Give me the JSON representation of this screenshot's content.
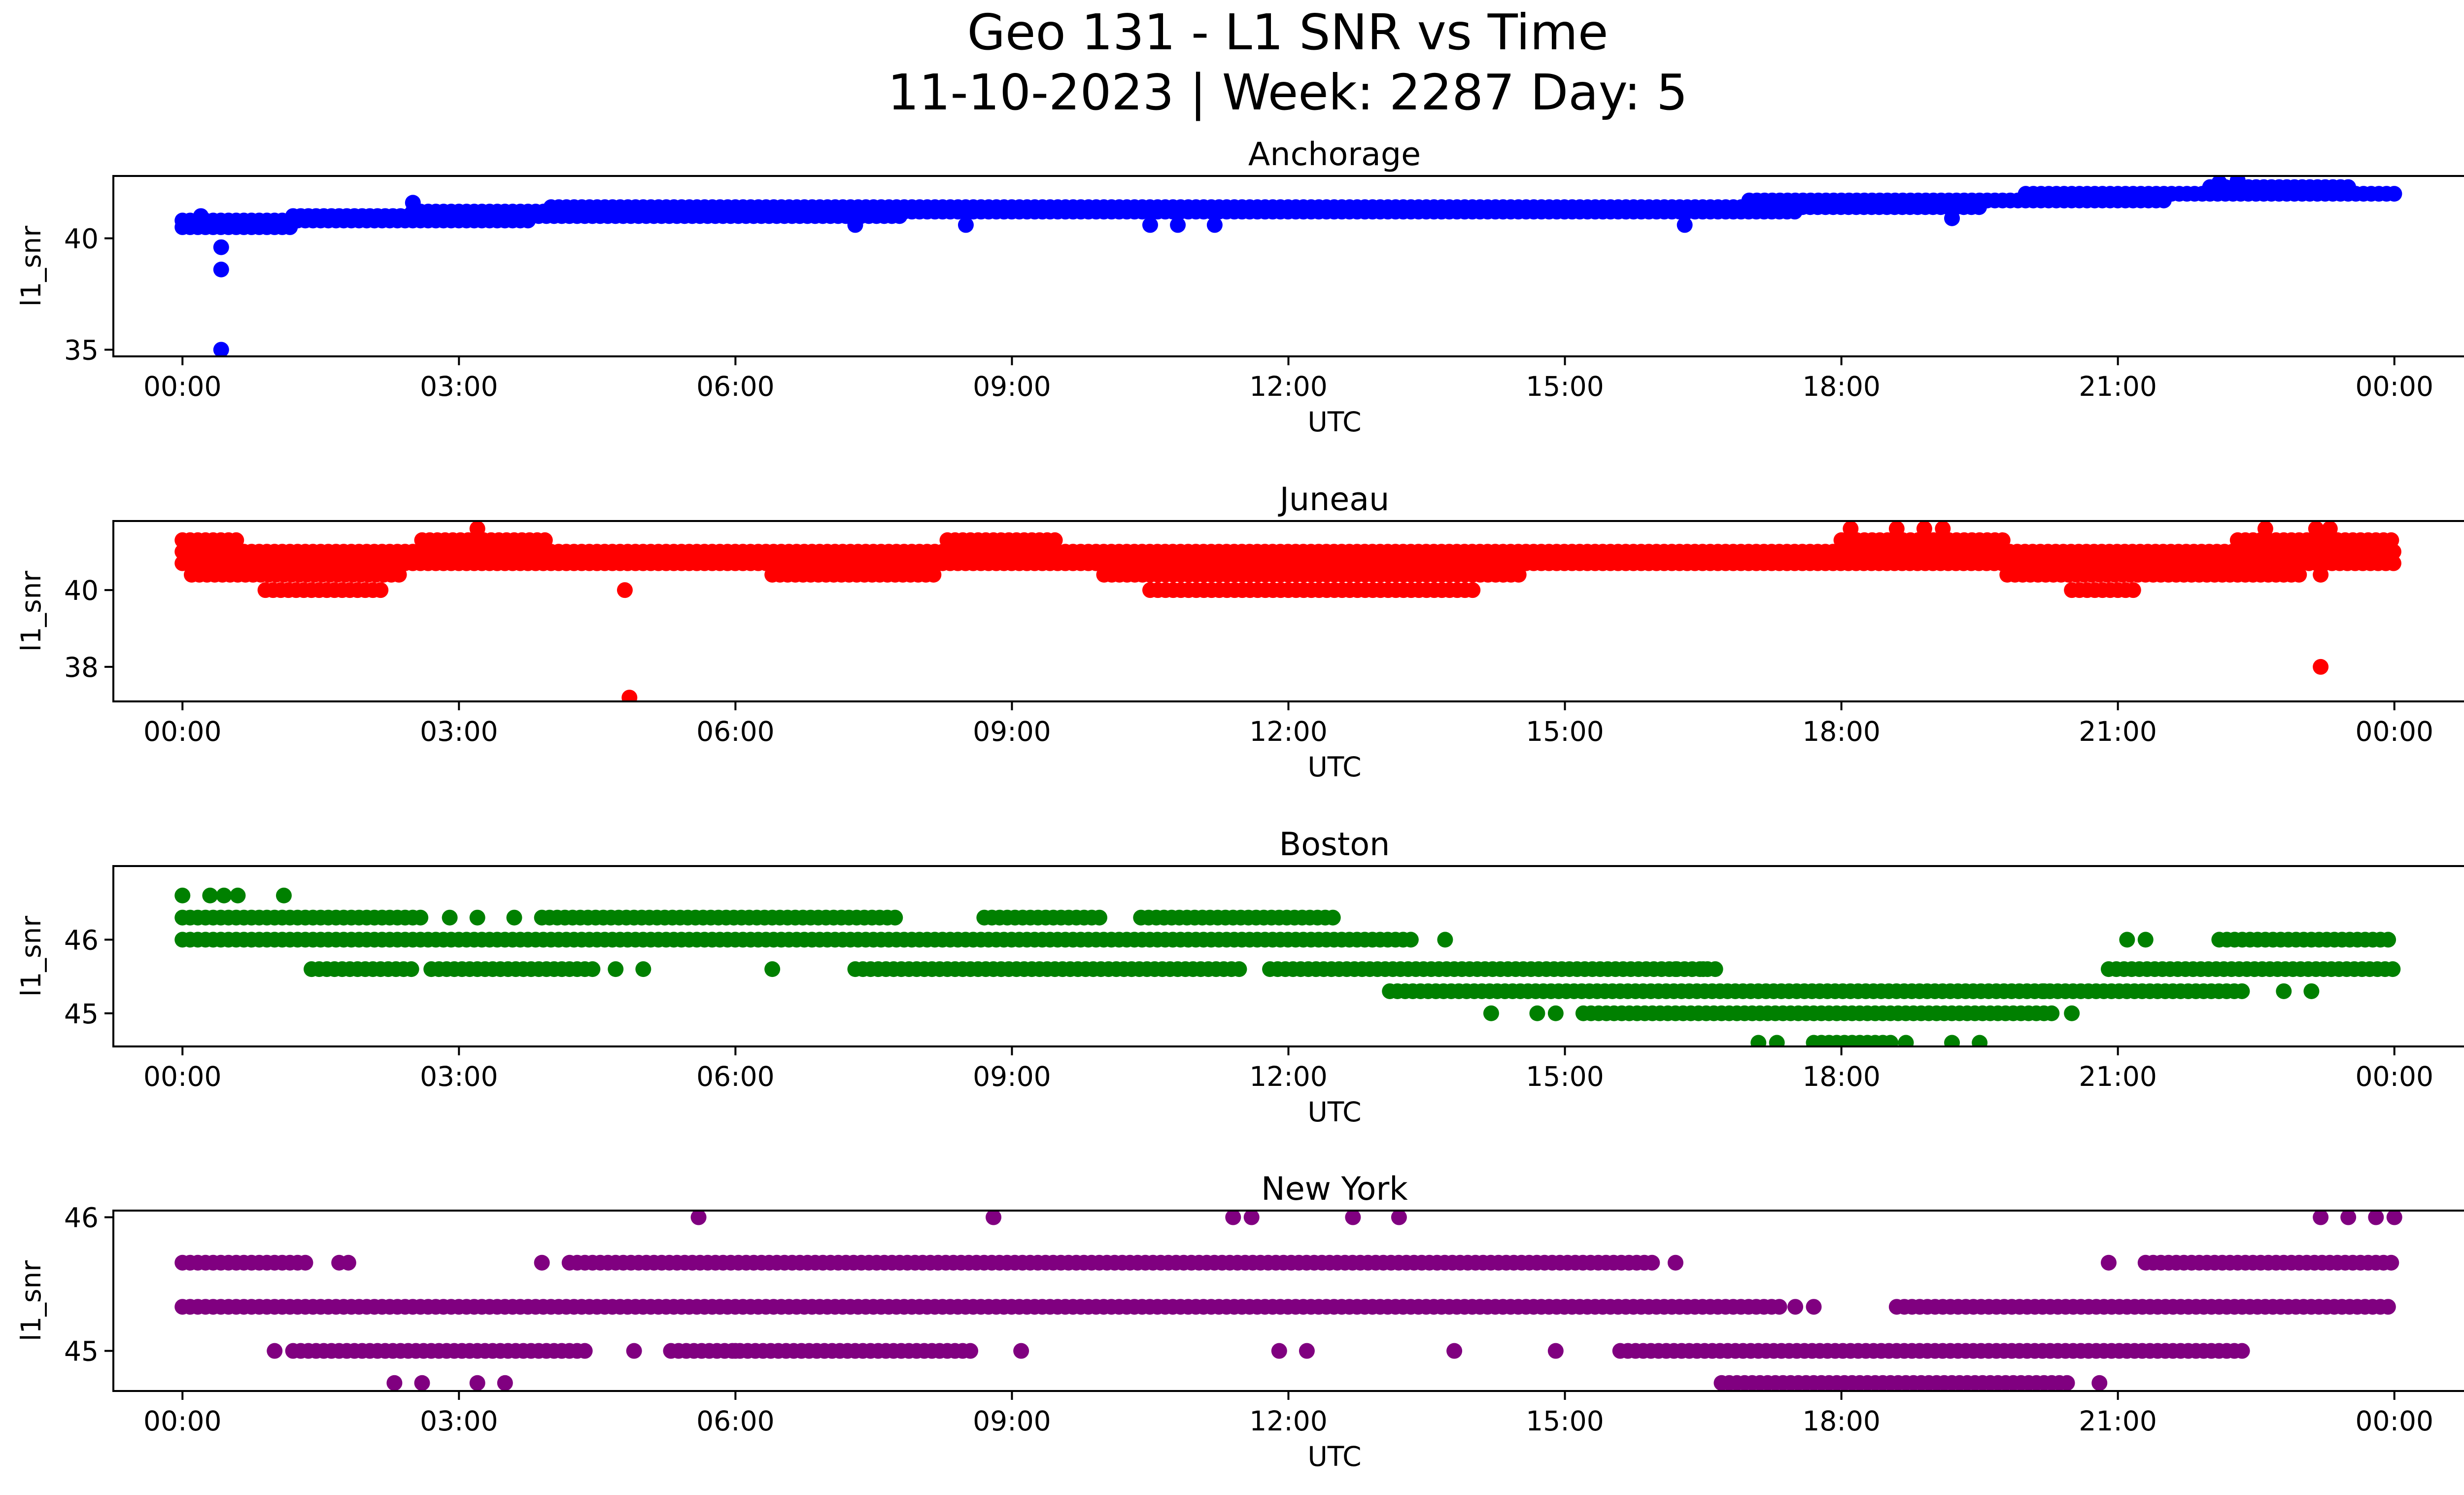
{
  "title_line1": "Geo 131 - L1 SNR vs Time",
  "title_line2": "11-10-2023 | Week: 2287 Day: 5",
  "chart_data": [
    {
      "type": "scatter",
      "title": "Anchorage",
      "xlabel": "UTC",
      "ylabel": "l1_snr",
      "color": "#0000ff",
      "xlim": [
        -0.75,
        25.75
      ],
      "ylim": [
        34.7,
        42.8
      ],
      "xtick_values": [
        0,
        3,
        6,
        9,
        12,
        15,
        18,
        21,
        24
      ],
      "xtick_labels": [
        "00:00",
        "03:00",
        "06:00",
        "09:00",
        "12:00",
        "15:00",
        "18:00",
        "21:00",
        "00:00"
      ],
      "ytick_values": [
        35,
        40
      ],
      "ytick_labels": [
        "35",
        "40"
      ],
      "series": [
        {
          "bands": [
            {
              "y": 40.5,
              "x": [
                [
                  0,
                  1.2
                ]
              ]
            },
            {
              "y": 40.8,
              "x": [
                [
                  0,
                  3.8
                ]
              ]
            },
            {
              "y": 41.0,
              "x": [
                [
                  1.2,
                  7.8
                ]
              ]
            },
            {
              "y": 41.2,
              "x": [
                [
                  2.5,
                  17.5
                ]
              ]
            },
            {
              "y": 41.4,
              "x": [
                [
                  4.0,
                  19.5
                ]
              ]
            },
            {
              "y": 41.7,
              "x": [
                [
                  17.0,
                  21.5
                ]
              ]
            },
            {
              "y": 42.0,
              "x": [
                [
                  20.0,
                  24
                ]
              ]
            },
            {
              "y": 42.3,
              "x": [
                [
                  22.0,
                  23.5
                ]
              ]
            }
          ],
          "points": [
            [
              0.42,
              39.6
            ],
            [
              0.42,
              38.6
            ],
            [
              0.42,
              35.0
            ],
            [
              0.2,
              41.0
            ],
            [
              2.5,
              41.6
            ],
            [
              22.1,
              42.5
            ],
            [
              22.3,
              42.6
            ],
            [
              7.3,
              40.6
            ],
            [
              8.5,
              40.6
            ],
            [
              10.5,
              40.6
            ],
            [
              10.8,
              40.6
            ],
            [
              11.2,
              40.6
            ],
            [
              16.3,
              40.6
            ],
            [
              19.2,
              40.9
            ]
          ]
        }
      ]
    },
    {
      "type": "scatter",
      "title": "Juneau",
      "xlabel": "UTC",
      "ylabel": "l1_snr",
      "color": "#ff0000",
      "xlim": [
        -0.75,
        25.75
      ],
      "ylim": [
        37.1,
        41.8
      ],
      "xtick_values": [
        0,
        3,
        6,
        9,
        12,
        15,
        18,
        21,
        24
      ],
      "xtick_labels": [
        "00:00",
        "03:00",
        "06:00",
        "09:00",
        "12:00",
        "15:00",
        "18:00",
        "21:00",
        "00:00"
      ],
      "ytick_values": [
        38,
        40
      ],
      "ytick_labels": [
        "38",
        "40"
      ],
      "series": [
        {
          "bands": [
            {
              "y": 41.3,
              "x": [
                [
                  0,
                  0.6
                ],
                [
                  2.6,
                  4.0
                ],
                [
                  8.3,
                  9.5
                ],
                [
                  18.0,
                  19.8
                ],
                [
                  22.3,
                  24
                ]
              ]
            },
            {
              "y": 41.0,
              "x": [
                [
                  0,
                  24
                ]
              ]
            },
            {
              "y": 40.7,
              "x": [
                [
                  0,
                  24
                ]
              ]
            },
            {
              "y": 40.4,
              "x": [
                [
                  0.1,
                  2.4
                ],
                [
                  6.4,
                  8.2
                ],
                [
                  10.0,
                  14.5
                ],
                [
                  19.8,
                  23.0
                ]
              ]
            },
            {
              "y": 40.0,
              "x": [
                [
                  0.9,
                  2.2
                ],
                [
                  10.5,
                  14.0
                ],
                [
                  20.5,
                  21.2
                ]
              ]
            }
          ],
          "points": [
            [
              3.2,
              41.6
            ],
            [
              4.8,
              40.0
            ],
            [
              4.85,
              37.2
            ],
            [
              18.1,
              41.6
            ],
            [
              18.6,
              41.6
            ],
            [
              18.9,
              41.6
            ],
            [
              19.1,
              41.6
            ],
            [
              22.6,
              41.6
            ],
            [
              23.15,
              41.6
            ],
            [
              23.3,
              41.6
            ],
            [
              23.2,
              40.4
            ],
            [
              23.2,
              38.0
            ]
          ]
        }
      ]
    },
    {
      "type": "scatter",
      "title": "Boston",
      "xlabel": "UTC",
      "ylabel": "l1_snr",
      "color": "#008000",
      "xlim": [
        -0.75,
        25.75
      ],
      "ylim": [
        44.55,
        47.0
      ],
      "xtick_values": [
        0,
        3,
        6,
        9,
        12,
        15,
        18,
        21,
        24
      ],
      "xtick_labels": [
        "00:00",
        "03:00",
        "06:00",
        "09:00",
        "12:00",
        "15:00",
        "18:00",
        "21:00",
        "00:00"
      ],
      "ytick_values": [
        45,
        46
      ],
      "ytick_labels": [
        "45",
        "46"
      ],
      "series": [
        {
          "bands": [
            {
              "y": 46.3,
              "x": [
                [
                  0,
                  2.6
                ],
                [
                  3.9,
                  7.8
                ],
                [
                  8.7,
                  10.0
                ],
                [
                  10.4,
                  12.5
                ]
              ]
            },
            {
              "y": 46.0,
              "x": [
                [
                  0,
                  13.4
                ],
                [
                  22.1,
                  24
                ]
              ]
            },
            {
              "y": 45.6,
              "x": [
                [
                  1.4,
                  2.5
                ],
                [
                  2.7,
                  4.5
                ],
                [
                  7.3,
                  11.5
                ],
                [
                  11.8,
                  16.7
                ],
                [
                  20.9,
                  24
                ]
              ]
            },
            {
              "y": 45.3,
              "x": [
                [
                  13.1,
                  22.4
                ]
              ]
            },
            {
              "y": 45.0,
              "x": [
                [
                  15.2,
                  20.3
                ]
              ]
            },
            {
              "y": 44.6,
              "x": [
                [
                  17.7,
                  18.6
                ]
              ]
            }
          ],
          "points": [
            [
              0.0,
              46.6
            ],
            [
              0.3,
              46.6
            ],
            [
              0.45,
              46.6
            ],
            [
              0.6,
              46.6
            ],
            [
              1.1,
              46.6
            ],
            [
              2.9,
              46.3
            ],
            [
              3.2,
              46.3
            ],
            [
              3.6,
              46.3
            ],
            [
              13.7,
              46.0
            ],
            [
              4.7,
              45.6
            ],
            [
              5.0,
              45.6
            ],
            [
              6.4,
              45.6
            ],
            [
              14.2,
              45.0
            ],
            [
              14.7,
              45.0
            ],
            [
              14.9,
              45.0
            ],
            [
              17.1,
              44.6
            ],
            [
              17.3,
              44.6
            ],
            [
              18.7,
              44.6
            ],
            [
              19.2,
              44.6
            ],
            [
              19.5,
              44.6
            ],
            [
              21.1,
              46.0
            ],
            [
              21.3,
              46.0
            ],
            [
              22.8,
              45.3
            ],
            [
              23.1,
              45.3
            ],
            [
              16.2,
              45.6
            ],
            [
              16.5,
              45.6
            ],
            [
              20.5,
              45.0
            ],
            [
              20.2,
              45.3
            ]
          ]
        }
      ]
    },
    {
      "type": "scatter",
      "title": "New York",
      "xlabel": "UTC",
      "ylabel": "l1_snr",
      "color": "#800080",
      "xlim": [
        -0.75,
        25.75
      ],
      "ylim": [
        44.7,
        46.05
      ],
      "xtick_values": [
        0,
        3,
        6,
        9,
        12,
        15,
        18,
        21,
        24
      ],
      "xtick_labels": [
        "00:00",
        "03:00",
        "06:00",
        "09:00",
        "12:00",
        "15:00",
        "18:00",
        "21:00",
        "00:00"
      ],
      "ytick_values": [
        45,
        46
      ],
      "ytick_labels": [
        "45",
        "46"
      ],
      "series": [
        {
          "bands": [
            {
              "y": 45.66,
              "x": [
                [
                  0,
                  1.4
                ],
                [
                  4.2,
                  16.0
                ],
                [
                  21.3,
                  24
                ]
              ]
            },
            {
              "y": 45.33,
              "x": [
                [
                  0,
                  17.4
                ],
                [
                  18.6,
                  24
                ]
              ]
            },
            {
              "y": 45.0,
              "x": [
                [
                  1.2,
                  4.4
                ],
                [
                  5.3,
                  8.6
                ],
                [
                  15.6,
                  22.4
                ]
              ]
            },
            {
              "y": 44.76,
              "x": [
                [
                  16.7,
                  20.5
                ]
              ]
            }
          ],
          "points": [
            [
              5.6,
              46.0
            ],
            [
              8.8,
              46.0
            ],
            [
              11.4,
              46.0
            ],
            [
              11.6,
              46.0
            ],
            [
              12.7,
              46.0
            ],
            [
              13.2,
              46.0
            ],
            [
              23.2,
              46.0
            ],
            [
              23.5,
              46.0
            ],
            [
              23.8,
              46.0
            ],
            [
              24.0,
              46.0
            ],
            [
              1.7,
              45.66
            ],
            [
              1.8,
              45.66
            ],
            [
              3.9,
              45.66
            ],
            [
              16.2,
              45.66
            ],
            [
              17.7,
              45.33
            ],
            [
              17.5,
              45.33
            ],
            [
              1.0,
              45.0
            ],
            [
              4.9,
              45.0
            ],
            [
              6.0,
              45.0
            ],
            [
              9.1,
              45.0
            ],
            [
              11.9,
              45.0
            ],
            [
              12.2,
              45.0
            ],
            [
              13.8,
              45.0
            ],
            [
              14.9,
              45.0
            ],
            [
              2.3,
              44.76
            ],
            [
              2.6,
              44.76
            ],
            [
              3.2,
              44.76
            ],
            [
              3.5,
              44.76
            ],
            [
              20.8,
              44.76
            ],
            [
              20.9,
              45.66
            ]
          ]
        }
      ]
    }
  ]
}
